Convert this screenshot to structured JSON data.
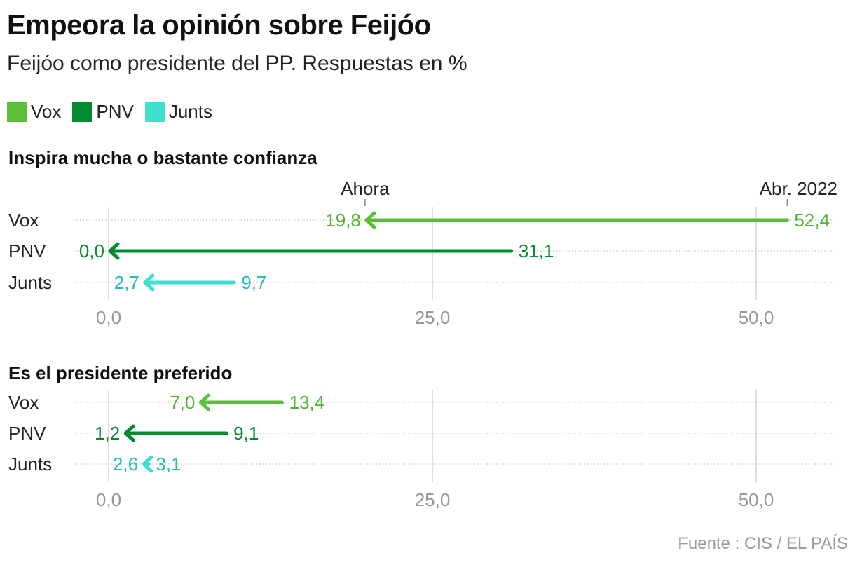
{
  "title": "Empeora la opinión sobre Feijóo",
  "subtitle": "Feijóo como presidente del PP. Respuestas en %",
  "legend": [
    {
      "label": "Vox",
      "color": "#5cbf3a"
    },
    {
      "label": "PNV",
      "color": "#008c2e"
    },
    {
      "label": "Junts",
      "color": "#3fdfd0"
    }
  ],
  "source": "Fuente : CIS / EL PAÍS",
  "chart_data": [
    {
      "type": "arrow-dumbbell",
      "title": "Inspira mucha o bastante confianza",
      "annotations": {
        "start": "Abr. 2022",
        "end": "Ahora"
      },
      "categories": [
        "Vox",
        "PNV",
        "Junts"
      ],
      "series": [
        {
          "name": "Abr. 2022",
          "values": [
            52.4,
            31.1,
            9.7
          ]
        },
        {
          "name": "Ahora",
          "values": [
            19.8,
            0.0,
            2.7
          ]
        }
      ],
      "value_labels": {
        "Abr. 2022": [
          "52,4",
          "31,1",
          "9,7"
        ],
        "Ahora": [
          "19,8",
          "0,0",
          "2,7"
        ]
      },
      "xlim": [
        0,
        55
      ],
      "ticks": [
        0,
        25,
        50
      ],
      "tick_labels": [
        "0,0",
        "25,0",
        "50,0"
      ]
    },
    {
      "type": "arrow-dumbbell",
      "title": "Es el presidente preferido",
      "categories": [
        "Vox",
        "PNV",
        "Junts"
      ],
      "series": [
        {
          "name": "Abr. 2022",
          "values": [
            13.4,
            9.1,
            3.1
          ]
        },
        {
          "name": "Ahora",
          "values": [
            7.0,
            1.2,
            2.6
          ]
        }
      ],
      "value_labels": {
        "Abr. 2022": [
          "13,4",
          "9,1",
          "3,1"
        ],
        "Ahora": [
          "7,0",
          "1,2",
          "2,6"
        ]
      },
      "xlim": [
        0,
        55
      ],
      "ticks": [
        0,
        25,
        50
      ],
      "tick_labels": [
        "0,0",
        "25,0",
        "50,0"
      ]
    }
  ]
}
